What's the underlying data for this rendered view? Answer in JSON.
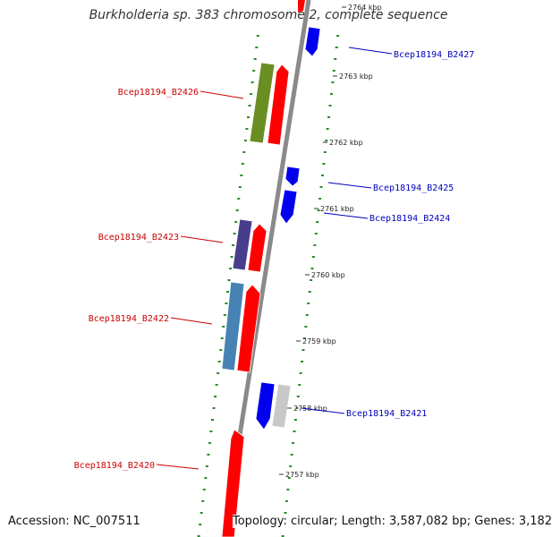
{
  "title": "Burkholderia sp. 383 chromosome 2, complete sequence",
  "footer": {
    "accession": "Accession: NC_007511",
    "topology": "Topology: circular; Length: 3,587,082 bp; Genes: 3,182"
  },
  "colors": {
    "backbone": "#8a8a8a",
    "dots": "#2a8a2a",
    "forward_label": "#cc0000",
    "reverse_label": "#0000bb",
    "cds_red": "#ff0000",
    "cds_blue": "#0000ee",
    "cds_olive": "#6b8e23",
    "cds_purple": "#483d8b",
    "cds_steel": "#4682b4",
    "cds_gray": "#c8c8c8"
  },
  "scale_labels": [
    "2764 kbp",
    "2763 kbp",
    "2762 kbp",
    "2761 kbp",
    "2760 kbp",
    "2759 kbp",
    "2758 kbp",
    "2757 kbp"
  ],
  "gene_labels": [
    {
      "text": "Bcep18194_B2427",
      "strand": "reverse"
    },
    {
      "text": "Bcep18194_B2426",
      "strand": "forward"
    },
    {
      "text": "Bcep18194_B2425",
      "strand": "reverse"
    },
    {
      "text": "Bcep18194_B2424",
      "strand": "reverse"
    },
    {
      "text": "Bcep18194_B2423",
      "strand": "forward"
    },
    {
      "text": "Bcep18194_B2422",
      "strand": "forward"
    },
    {
      "text": "Bcep18194_B2421",
      "strand": "reverse"
    },
    {
      "text": "Bcep18194_B2420",
      "strand": "forward"
    }
  ]
}
